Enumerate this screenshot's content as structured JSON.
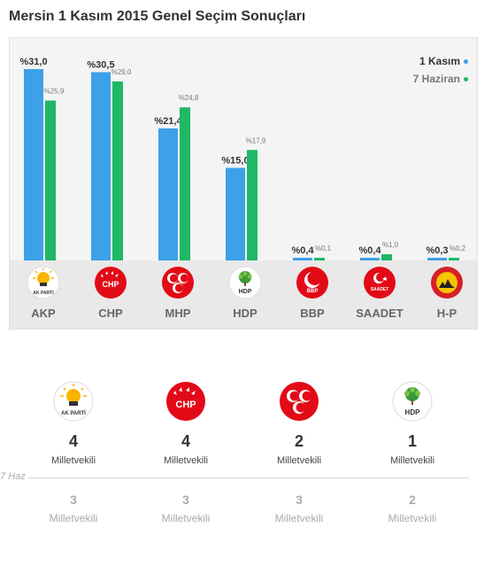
{
  "title": "Mersin 1 Kasım 2015 Genel Seçim Sonuçları",
  "legend": {
    "current": "1 Kasım",
    "previous": "7 Haziran",
    "current_color": "#3da1e8",
    "previous_color": "#1eb866"
  },
  "chart_data": {
    "type": "bar",
    "title": "Mersin 1 Kasım 2015 Genel Seçim Sonuçları",
    "categories": [
      "AKP",
      "CHP",
      "MHP",
      "HDP",
      "BBP",
      "SAADET",
      "H-P"
    ],
    "series": [
      {
        "name": "1 Kasım",
        "values": [
          31.0,
          30.5,
          21.4,
          15.0,
          0.4,
          0.4,
          0.3
        ],
        "labels": [
          "%31,0",
          "%30,5",
          "%21,4",
          "%15,0",
          "%0,4",
          "%0,4",
          "%0,3"
        ],
        "color": "#3da1e8"
      },
      {
        "name": "7 Haziran",
        "values": [
          25.9,
          29.0,
          24.8,
          17.9,
          0.1,
          1.0,
          0.2
        ],
        "labels": [
          "%25,9",
          "%29,0",
          "%24,8",
          "%17,9",
          "%0,1",
          "%1,0",
          "%0,2"
        ],
        "color": "#1eb866"
      }
    ],
    "ylim": [
      0,
      32
    ],
    "legend_position": "top-right",
    "grid": false
  },
  "parties": [
    {
      "name": "AKP",
      "logo": "akp-logo-icon",
      "logo_text": "AK PARTİ"
    },
    {
      "name": "CHP",
      "logo": "chp-logo-icon",
      "logo_text": "CHP"
    },
    {
      "name": "MHP",
      "logo": "mhp-logo-icon",
      "logo_text": ""
    },
    {
      "name": "HDP",
      "logo": "hdp-logo-icon",
      "logo_text": "HDP"
    },
    {
      "name": "BBP",
      "logo": "bbp-logo-icon",
      "logo_text": "BBP"
    },
    {
      "name": "SAADET",
      "logo": "saadet-logo-icon",
      "logo_text": "SAADET"
    },
    {
      "name": "H-P",
      "logo": "hp-logo-icon",
      "logo_text": ""
    }
  ],
  "seats": {
    "previous_tag": "7 Haz",
    "items": [
      {
        "party": "AKP",
        "current": "4",
        "current_label": "Milletvekili",
        "previous": "3",
        "previous_label": "Milletvekili"
      },
      {
        "party": "CHP",
        "current": "4",
        "current_label": "Milletvekili",
        "previous": "3",
        "previous_label": "Milletvekili"
      },
      {
        "party": "MHP",
        "current": "2",
        "current_label": "Milletvekili",
        "previous": "3",
        "previous_label": "Milletvekili"
      },
      {
        "party": "HDP",
        "current": "1",
        "current_label": "Milletvekili",
        "previous": "2",
        "previous_label": "Milletvekili"
      }
    ]
  }
}
